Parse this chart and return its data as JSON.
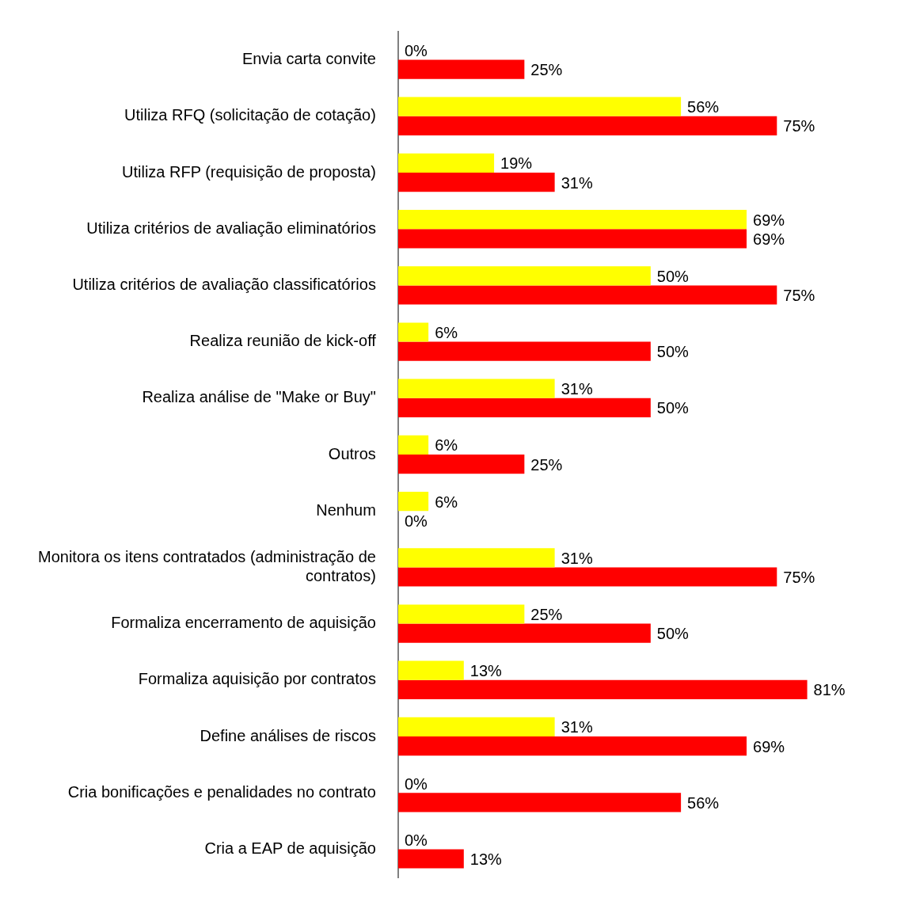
{
  "chart_data": {
    "type": "bar",
    "orientation": "horizontal",
    "tick_labels": "y",
    "legend": false,
    "categories": [
      "Envia carta convite",
      "Utiliza RFQ (solicitação de cotação)",
      "Utiliza RFP (requisição de proposta)",
      "Utiliza critérios de avaliação eliminatórios",
      "Utiliza critérios de avaliação classificatórios",
      "Realiza reunião de kick-off",
      "Realiza análise de \"Make or Buy\"",
      "Outros",
      "Nenhum",
      "Monitora os itens contratados (administração de contratos)",
      "Formaliza encerramento de aquisição",
      "Formaliza aquisição por contratos",
      "Define análises de riscos",
      "Cria bonificações e penalidades no contrato",
      "Cria a EAP de aquisição"
    ],
    "series": [
      {
        "color": "#ffff00",
        "values": [
          0,
          56,
          19,
          69,
          50,
          6,
          31,
          6,
          6,
          31,
          25,
          13,
          31,
          0,
          0
        ],
        "value_labels": [
          "0%",
          "56%",
          "19%",
          "69%",
          "50%",
          "6%",
          "31%",
          "6%",
          "6%",
          "31%",
          "25%",
          "13%",
          "31%",
          "0%",
          "0%"
        ]
      },
      {
        "color": "#ff0000",
        "values": [
          25,
          75,
          31,
          69,
          75,
          50,
          50,
          25,
          0,
          75,
          50,
          81,
          69,
          56,
          13
        ],
        "value_labels": [
          "25%",
          "75%",
          "31%",
          "69%",
          "75%",
          "50%",
          "50%",
          "25%",
          "0%",
          "75%",
          "50%",
          "81%",
          "69%",
          "56%",
          "13%"
        ]
      }
    ]
  }
}
